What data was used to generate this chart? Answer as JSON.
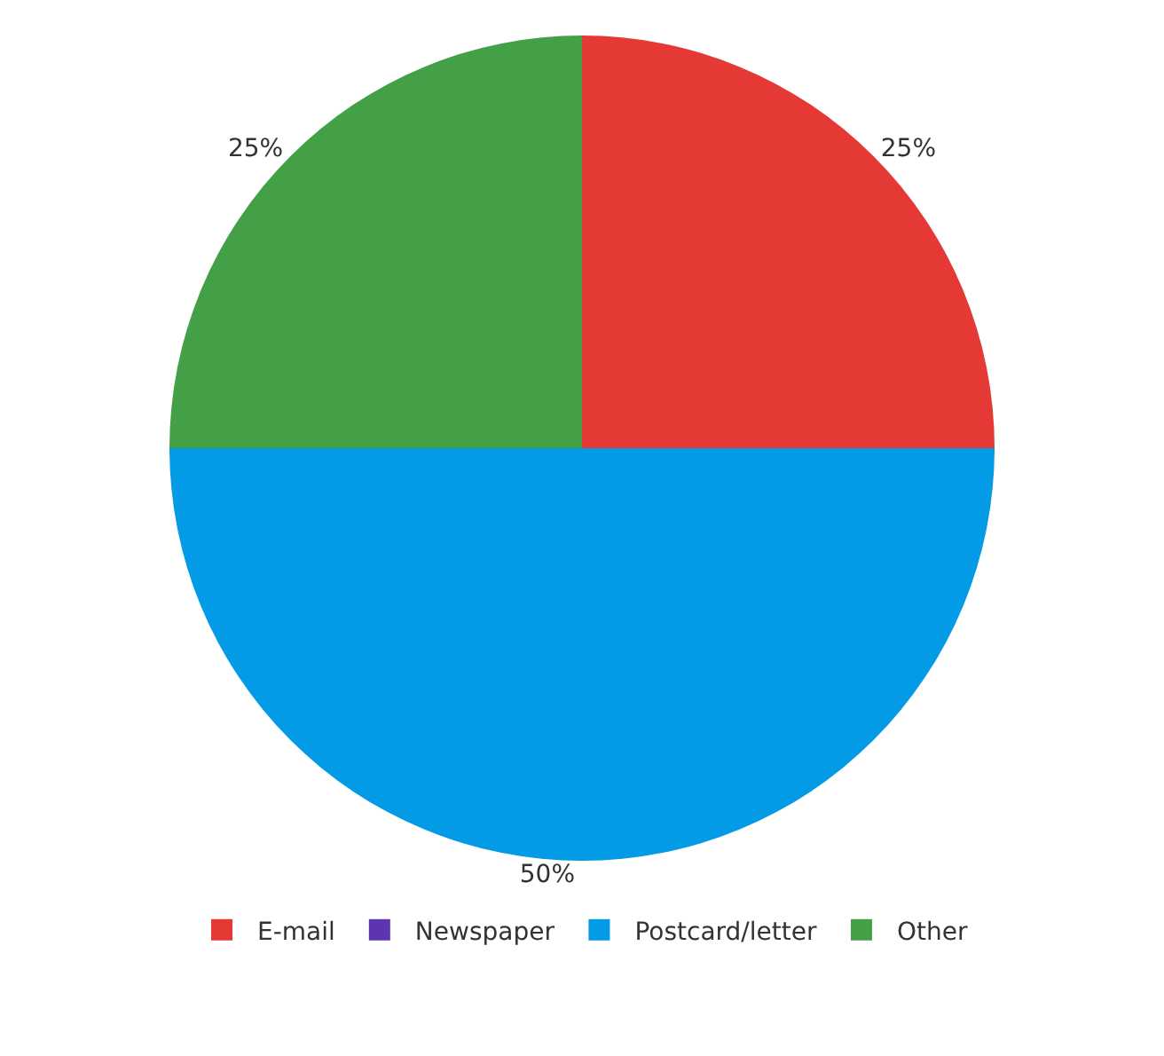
{
  "chart_data": {
    "type": "pie",
    "categories": [
      "E-mail",
      "Newspaper",
      "Postcard/letter",
      "Other"
    ],
    "values": [
      25,
      0,
      50,
      25
    ],
    "colors": [
      "#e53935",
      "#5e35b1",
      "#039be5",
      "#43a047"
    ],
    "value_labels": [
      "25%",
      null,
      "50%",
      "25%"
    ],
    "legend": "bottom"
  }
}
